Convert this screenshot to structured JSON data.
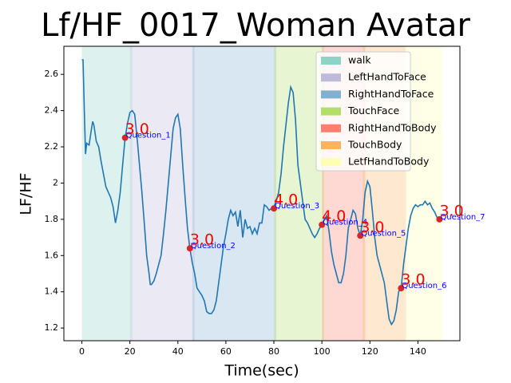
{
  "chart_data": {
    "type": "line",
    "title": "Lf/HF_0017_Woman Avatar",
    "x_label": "Time(sec)",
    "y_label": "LF/HF",
    "xlim": [
      -7.5,
      157.5
    ],
    "ylim": [
      1.13,
      2.755
    ],
    "xticks": [
      0,
      20,
      40,
      60,
      80,
      100,
      120,
      140
    ],
    "yticks": [
      1.2,
      1.4,
      1.6,
      1.8,
      2.0,
      2.2,
      2.4,
      2.6
    ],
    "legend_position": "upper right",
    "spans": [
      {
        "name": "walk",
        "color": "#8dd3c7",
        "start": 0,
        "end": 21
      },
      {
        "name": "LeftHandToFace",
        "color": "#bebada",
        "start": 20,
        "end": 47
      },
      {
        "name": "RightHandToFace",
        "color": "#80b1d3",
        "start": 46,
        "end": 81
      },
      {
        "name": "TouchFace",
        "color": "#b3de69",
        "start": 80,
        "end": 101
      },
      {
        "name": "RightHandToBody",
        "color": "#fb8072",
        "start": 100,
        "end": 118
      },
      {
        "name": "TouchBody",
        "color": "#fdb462",
        "start": 117,
        "end": 135
      },
      {
        "name": "LetfHandToBody",
        "color": "#ffffb3",
        "start": 135,
        "end": 150
      }
    ],
    "series": [
      {
        "color": "#1f77b4",
        "x": [
          0,
          0.5,
          1,
          1.5,
          2,
          3,
          4,
          4.5,
          5,
          6,
          7,
          8,
          9,
          10,
          11,
          12,
          13,
          14,
          15,
          16,
          17,
          18,
          19,
          20,
          21,
          22,
          23,
          24,
          25,
          26,
          27,
          28,
          28.5,
          29,
          30,
          31,
          32,
          33,
          34,
          35,
          36,
          37,
          38,
          39,
          40,
          41,
          42,
          43,
          44,
          45,
          46,
          47,
          48,
          49,
          50,
          51,
          52,
          53,
          54,
          55,
          56,
          57,
          58,
          59,
          60,
          61,
          62,
          63,
          64,
          65,
          66,
          67,
          68,
          69,
          70,
          71,
          72,
          73,
          74,
          75,
          76,
          77,
          78,
          79,
          80,
          81,
          82,
          83,
          84,
          85,
          86,
          87,
          88,
          89,
          90,
          91,
          92,
          93,
          94,
          95,
          96,
          97,
          98,
          99,
          100,
          101,
          102,
          103,
          104,
          105,
          106,
          107,
          108,
          109,
          110,
          111,
          112,
          113,
          114,
          115,
          116,
          117,
          118,
          119,
          120,
          121,
          122,
          123,
          124,
          125,
          126,
          127,
          128,
          129,
          130,
          131,
          132,
          133,
          134,
          135,
          136,
          137,
          138,
          139,
          140,
          141,
          142,
          143,
          144,
          145,
          146,
          147,
          148,
          149
        ],
        "values": [
          2.68,
          2.68,
          2.4,
          2.16,
          2.22,
          2.21,
          2.3,
          2.34,
          2.32,
          2.23,
          2.2,
          2.12,
          2.05,
          1.98,
          1.95,
          1.92,
          1.87,
          1.78,
          1.85,
          1.95,
          2.1,
          2.25,
          2.33,
          2.39,
          2.4,
          2.38,
          2.25,
          2.1,
          1.95,
          1.78,
          1.6,
          1.5,
          1.44,
          1.44,
          1.46,
          1.5,
          1.55,
          1.6,
          1.72,
          1.85,
          2.0,
          2.15,
          2.3,
          2.36,
          2.38,
          2.3,
          2.1,
          1.92,
          1.75,
          1.64,
          1.56,
          1.5,
          1.42,
          1.4,
          1.38,
          1.35,
          1.29,
          1.28,
          1.28,
          1.3,
          1.35,
          1.45,
          1.55,
          1.65,
          1.72,
          1.8,
          1.85,
          1.82,
          1.84,
          1.76,
          1.85,
          1.7,
          1.8,
          1.75,
          1.76,
          1.72,
          1.75,
          1.72,
          1.78,
          1.78,
          1.88,
          1.87,
          1.85,
          1.86,
          1.87,
          1.9,
          1.95,
          2.05,
          2.2,
          2.32,
          2.44,
          2.53,
          2.5,
          2.35,
          2.1,
          2.0,
          1.9,
          1.8,
          1.78,
          1.75,
          1.72,
          1.7,
          1.72,
          1.75,
          1.77,
          1.8,
          1.82,
          1.73,
          1.62,
          1.55,
          1.5,
          1.45,
          1.45,
          1.5,
          1.6,
          1.75,
          1.8,
          1.85,
          1.83,
          1.75,
          1.71,
          1.8,
          1.95,
          2.01,
          1.98,
          1.85,
          1.7,
          1.6,
          1.55,
          1.5,
          1.45,
          1.35,
          1.25,
          1.22,
          1.24,
          1.3,
          1.4,
          1.42,
          1.55,
          1.65,
          1.75,
          1.82,
          1.86,
          1.88,
          1.87,
          1.88,
          1.88,
          1.9,
          1.88,
          1.89,
          1.86,
          1.84,
          1.81,
          1.8
        ]
      }
    ],
    "questions": [
      {
        "label": "Question_1",
        "x": 18,
        "y": 2.25,
        "rating": "3.0"
      },
      {
        "label": "Question_2",
        "x": 45,
        "y": 1.64,
        "rating": "3.0"
      },
      {
        "label": "Question_3",
        "x": 80,
        "y": 1.86,
        "rating": "4.0"
      },
      {
        "label": "Question_4",
        "x": 100,
        "y": 1.77,
        "rating": "4.0"
      },
      {
        "label": "Question_5",
        "x": 116,
        "y": 1.71,
        "rating": "3.0"
      },
      {
        "label": "Question_6",
        "x": 133,
        "y": 1.42,
        "rating": "3.0"
      },
      {
        "label": "Question_7",
        "x": 149,
        "y": 1.8,
        "rating": "3.0"
      }
    ]
  }
}
